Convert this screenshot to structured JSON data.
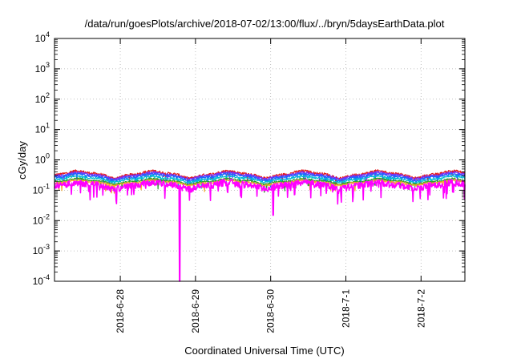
{
  "chart_data": {
    "type": "line",
    "title": "/data/run/goesPlots/archive/2018-07-02/13:00/flux/../bryn/5daysEarthData.plot",
    "xlabel": "Coordinated Universal Time (UTC)",
    "ylabel": "cGy/day",
    "y_scale": "log",
    "ylim": [
      0.0001,
      10000
    ],
    "y_ticks": [
      {
        "value": 0.0001,
        "base": "10",
        "exp": "-4"
      },
      {
        "value": 0.001,
        "base": "10",
        "exp": "-3"
      },
      {
        "value": 0.01,
        "base": "10",
        "exp": "-2"
      },
      {
        "value": 0.1,
        "base": "10",
        "exp": "-1"
      },
      {
        "value": 1,
        "base": "10",
        "exp": "0"
      },
      {
        "value": 10,
        "base": "10",
        "exp": "1"
      },
      {
        "value": 100,
        "base": "10",
        "exp": "2"
      },
      {
        "value": 1000,
        "base": "10",
        "exp": "3"
      },
      {
        "value": 10000,
        "base": "10",
        "exp": "4"
      }
    ],
    "xlim": [
      "2018-06-27T03:00",
      "2018-07-02T14:00"
    ],
    "x_ticks": [
      "2018-6-28",
      "2018-6-29",
      "2018-6-30",
      "2018-7-1",
      "2018-7-2"
    ],
    "grid": true,
    "series": [
      {
        "color": "#e41a1c",
        "level": 0.34,
        "amplitude": 0.22,
        "noise": 0.1
      },
      {
        "color": "#7b2ff7",
        "level": 0.31,
        "amplitude": 0.2,
        "noise": 0.09
      },
      {
        "color": "#1e64ff",
        "level": 0.28,
        "amplitude": 0.2,
        "noise": 0.08
      },
      {
        "color": "#00bcd4",
        "level": 0.24,
        "amplitude": 0.18,
        "noise": 0.07
      },
      {
        "color": "#2ca02c",
        "level": 0.2,
        "amplitude": 0.16,
        "noise": 0.06
      },
      {
        "color": "#f5a623",
        "level": 0.18,
        "amplitude": 0.15,
        "noise": 0.06
      },
      {
        "color": "#ff00ff",
        "level": 0.15,
        "amplitude": 0.2,
        "noise": 0.25
      }
    ],
    "notable_events": [
      {
        "series_color": "#ff00ff",
        "time": "2018-06-28T19:00",
        "min_value": 0.0001
      },
      {
        "series_color": "#ff00ff",
        "time": "2018-06-30T00:50",
        "min_value": 0.015
      }
    ]
  }
}
